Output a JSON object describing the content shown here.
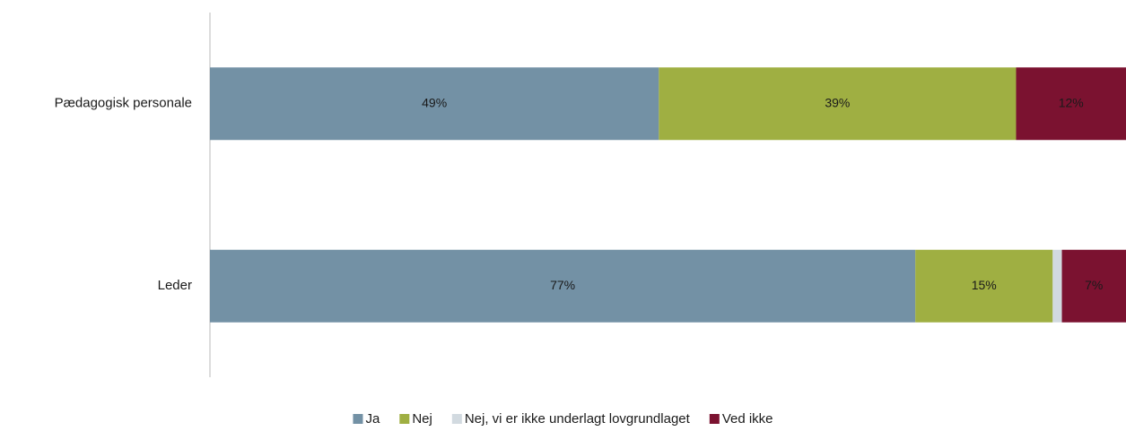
{
  "chart_data": {
    "type": "stacked_barh",
    "categories": [
      "Pædagogisk personale",
      "Leder"
    ],
    "xlim": [
      0,
      100
    ],
    "series": [
      {
        "name": "Ja",
        "color": "#7391a5",
        "label_color": "#1a1a1a",
        "values": [
          49,
          77
        ],
        "value_labels": [
          "49%",
          "77%"
        ]
      },
      {
        "name": "Nej",
        "color": "#9faf42",
        "label_color": "#1a1a1a",
        "values": [
          39,
          15
        ],
        "value_labels": [
          "39%",
          "15%"
        ]
      },
      {
        "name": "Nej, vi er ikke underlagt lovgrundlaget",
        "color": "#d2dae0",
        "values": [
          0,
          1
        ]
      },
      {
        "name": "Ved ikke",
        "color": "#7b1230",
        "label_color": "#ffffff",
        "values": [
          12,
          7
        ],
        "value_labels": [
          "12%",
          "7%"
        ]
      }
    ],
    "legend": "bottom"
  }
}
